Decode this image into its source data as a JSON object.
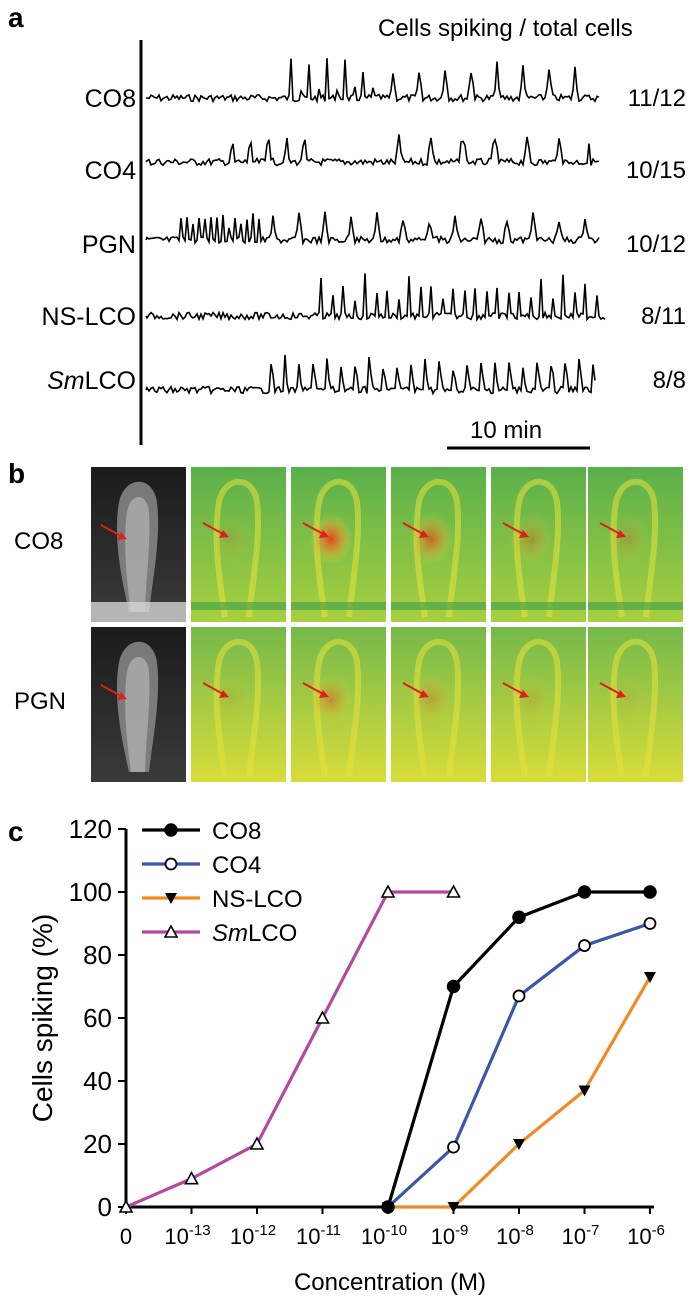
{
  "panel_a": {
    "letter": "a",
    "header": "Cells spiking / total cells",
    "traces": [
      {
        "label": "CO8",
        "label_italic": "",
        "label_rest": "",
        "ratio": "11/12"
      },
      {
        "label": "CO4",
        "label_italic": "",
        "label_rest": "",
        "ratio": "10/15"
      },
      {
        "label": "PGN",
        "label_italic": "",
        "label_rest": "",
        "ratio": "10/12"
      },
      {
        "label": "NS-LCO",
        "label_italic": "",
        "label_rest": "",
        "ratio": "8/11"
      },
      {
        "label": "",
        "label_italic": "Sm",
        "label_rest": "LCO",
        "ratio": "8/8"
      }
    ],
    "scale_bar": "10 min"
  },
  "panel_b": {
    "letter": "b",
    "rows": [
      {
        "label": "CO8",
        "frames": [
          0.0,
          0.15,
          0.95,
          0.7,
          0.35,
          0.25
        ]
      },
      {
        "label": "PGN",
        "frames": [
          0.0,
          0.1,
          0.45,
          0.3,
          0.15,
          0.1
        ]
      }
    ],
    "colors": {
      "low": "#6cb84a",
      "high": "#e7e23c",
      "hot": "#e0401c",
      "arrow": "#e01e1e"
    }
  },
  "panel_c": {
    "letter": "c"
  },
  "chart_data": {
    "type": "line",
    "xlabel": "Concentration (M)",
    "ylabel": "Cells spiking (%)",
    "ylim": [
      0,
      120
    ],
    "yticks": [
      0,
      20,
      40,
      60,
      80,
      100,
      120
    ],
    "x_categories": [
      {
        "base": "0",
        "exp": ""
      },
      {
        "base": "10",
        "exp": "-13"
      },
      {
        "base": "10",
        "exp": "-12"
      },
      {
        "base": "10",
        "exp": "-11"
      },
      {
        "base": "10",
        "exp": "-10"
      },
      {
        "base": "10",
        "exp": "-9"
      },
      {
        "base": "10",
        "exp": "-8"
      },
      {
        "base": "10",
        "exp": "-7"
      },
      {
        "base": "10",
        "exp": "-6"
      }
    ],
    "legend_position": "top-left",
    "series": [
      {
        "name": "CO8",
        "name_italic": "",
        "name_rest": "",
        "color": "#000000",
        "marker": "filled-circle",
        "points": [
          [
            4,
            0
          ],
          [
            5,
            70
          ],
          [
            6,
            92
          ],
          [
            7,
            100
          ],
          [
            8,
            100
          ]
        ]
      },
      {
        "name": "CO4",
        "name_italic": "",
        "name_rest": "",
        "color": "#3a56a6",
        "marker": "open-circle",
        "points": [
          [
            4,
            0
          ],
          [
            5,
            19
          ],
          [
            6,
            67
          ],
          [
            7,
            83
          ],
          [
            8,
            90
          ]
        ]
      },
      {
        "name": "NS-LCO",
        "name_italic": "",
        "name_rest": "",
        "color": "#f08a24",
        "marker": "filled-triangle-down",
        "points": [
          [
            4,
            0
          ],
          [
            5,
            0
          ],
          [
            6,
            20
          ],
          [
            7,
            37
          ],
          [
            8,
            73
          ]
        ]
      },
      {
        "name": "",
        "name_italic": "Sm",
        "name_rest": "LCO",
        "color": "#b24a9e",
        "marker": "open-triangle-up",
        "points": [
          [
            0,
            0
          ],
          [
            1,
            9
          ],
          [
            2,
            20
          ],
          [
            3,
            60
          ],
          [
            4,
            100
          ],
          [
            5,
            100
          ]
        ]
      }
    ]
  }
}
